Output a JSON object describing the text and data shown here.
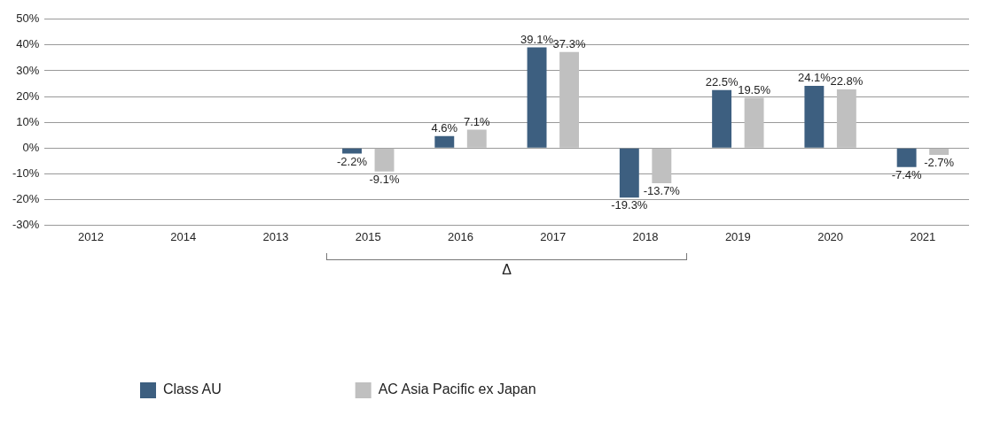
{
  "chart_data": {
    "type": "bar",
    "categories": [
      "2012",
      "2014",
      "2013",
      "2015",
      "2016",
      "2017",
      "2018",
      "2019",
      "2020",
      "2021"
    ],
    "series": [
      {
        "name": "Class AU",
        "color": "#3d5f80",
        "values": [
          null,
          null,
          null,
          -2.2,
          4.6,
          39.1,
          -19.3,
          22.5,
          24.1,
          -7.4
        ],
        "value_labels": [
          null,
          null,
          null,
          "-2.2%",
          "4.6%",
          "39.1%",
          "-19.3%",
          "22.5%",
          "24.1%",
          "-7.4%"
        ]
      },
      {
        "name": "AC Asia Pacific ex Japan",
        "color": "#c0c0c0",
        "values": [
          null,
          null,
          null,
          -9.1,
          7.1,
          37.3,
          -13.7,
          19.5,
          22.8,
          -2.7
        ],
        "value_labels": [
          null,
          null,
          null,
          "-9.1%",
          "7.1%",
          "37.3%",
          "-13.7%",
          "19.5%",
          "22.8%",
          "-2.7%"
        ]
      }
    ],
    "ylim": [
      -30,
      50
    ],
    "yticks": [
      {
        "value": -30,
        "label": "-30%"
      },
      {
        "value": -20,
        "label": "-20%"
      },
      {
        "value": -10,
        "label": "-10%"
      },
      {
        "value": 0,
        "label": "0%"
      },
      {
        "value": 10,
        "label": "10%"
      },
      {
        "value": 20,
        "label": "20%"
      },
      {
        "value": 30,
        "label": "30%"
      },
      {
        "value": 40,
        "label": "40%"
      },
      {
        "value": 50,
        "label": "50%"
      }
    ],
    "grid": "y",
    "legend": "bottom left",
    "annotations": [
      "Δ"
    ]
  }
}
